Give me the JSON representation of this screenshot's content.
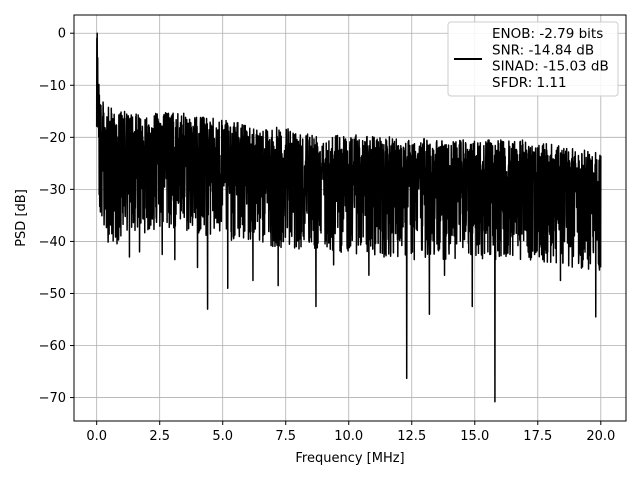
{
  "chart_data": {
    "type": "line",
    "title": "",
    "xlabel": "Frequency [MHz]",
    "ylabel": "PSD [dB]",
    "xlim": [
      -0.9,
      21.0
    ],
    "ylim": [
      -74.5,
      3.5
    ],
    "xticks": [
      0.0,
      2.5,
      5.0,
      7.5,
      10.0,
      12.5,
      15.0,
      17.5,
      20.0
    ],
    "xtick_labels": [
      "0.0",
      "2.5",
      "5.0",
      "7.5",
      "10.0",
      "12.5",
      "15.0",
      "17.5",
      "20.0"
    ],
    "yticks": [
      0,
      -10,
      -20,
      -30,
      -40,
      -50,
      -60,
      -70
    ],
    "ytick_labels": [
      "0",
      "−10",
      "−20",
      "−30",
      "−40",
      "−50",
      "−60",
      "−70"
    ],
    "grid": true,
    "legend_position": "top-right",
    "legend": {
      "lines": [
        "ENOB: -2.79 bits",
        "SNR: -14.84 dB",
        "SINAD: -15.03 dB",
        "SFDR: 1.11"
      ]
    },
    "series": [
      {
        "color": "#000000",
        "description": "noisy PSD trace sampled from 0 to 20 MHz",
        "x_range": [
          0.0,
          20.0
        ],
        "envelope": {
          "upper_peaks": [
            [
              0.0,
              0.0
            ],
            [
              0.05,
              -2.0
            ],
            [
              0.1,
              -8.0
            ],
            [
              0.3,
              -12.0
            ],
            [
              1.5,
              -13.5
            ],
            [
              3.0,
              -13.0
            ],
            [
              6.0,
              -15.5
            ],
            [
              9.0,
              -17.0
            ],
            [
              12.0,
              -18.0
            ],
            [
              14.0,
              -18.5
            ],
            [
              17.0,
              -18.5
            ],
            [
              20.0,
              -21.0
            ]
          ],
          "typical_band": [
            -35,
            -15
          ]
        },
        "deep_dips": [
          [
            0.1,
            -31.0
          ],
          [
            0.6,
            -38.5
          ],
          [
            1.3,
            -43.0
          ],
          [
            1.7,
            -42.0
          ],
          [
            2.6,
            -42.5
          ],
          [
            3.1,
            -43.5
          ],
          [
            4.0,
            -45.0
          ],
          [
            4.4,
            -53.0
          ],
          [
            5.2,
            -49.0
          ],
          [
            6.2,
            -47.5
          ],
          [
            7.2,
            -48.5
          ],
          [
            8.7,
            -52.5
          ],
          [
            9.4,
            -44.5
          ],
          [
            10.8,
            -46.5
          ],
          [
            11.4,
            -43.0
          ],
          [
            12.3,
            -66.3
          ],
          [
            12.6,
            -43.5
          ],
          [
            13.2,
            -54.0
          ],
          [
            13.8,
            -46.5
          ],
          [
            14.0,
            -40.5
          ],
          [
            14.9,
            -52.5
          ],
          [
            15.6,
            -42.5
          ],
          [
            15.8,
            -70.8
          ],
          [
            16.4,
            -42.5
          ],
          [
            17.7,
            -43.5
          ],
          [
            18.4,
            -47.5
          ],
          [
            19.3,
            -43.5
          ],
          [
            19.8,
            -54.5
          ]
        ]
      }
    ]
  }
}
